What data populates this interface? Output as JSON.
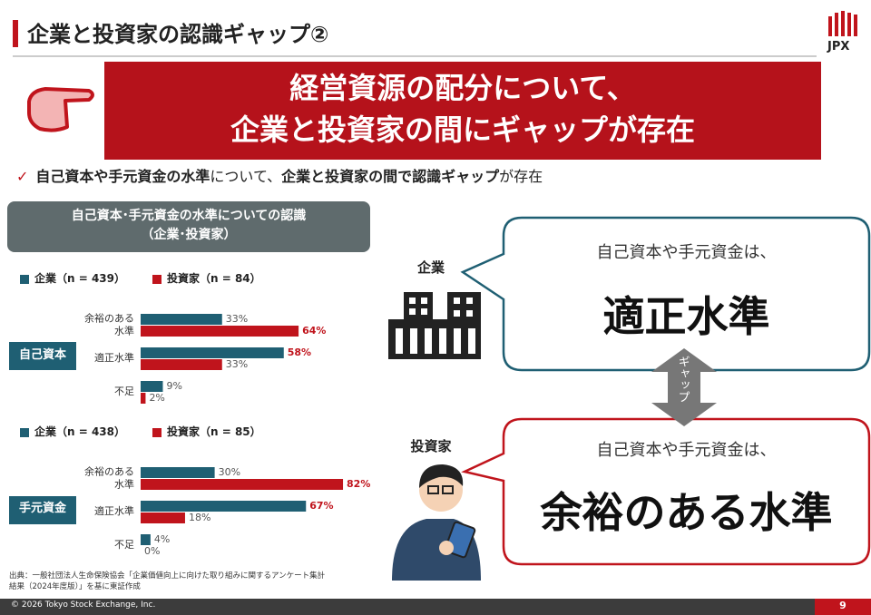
{
  "header": {
    "title": "企業と投資家の認識ギャップ②",
    "logo": "JPX"
  },
  "banner": {
    "lines": [
      "経営資源の配分について、",
      "企業と投資家の間にギャップが存在"
    ]
  },
  "bullet": {
    "mark": "✓",
    "segments": [
      {
        "text": "自己資本や手元資金の水準",
        "bold": true
      },
      {
        "text": "について、",
        "bold": false
      },
      {
        "text": "企業と投資家の間で認識ギャップ",
        "bold": true
      },
      {
        "text": "が存在",
        "bold": false
      }
    ]
  },
  "panel": {
    "lines": [
      "自己資本･手元資金の水準についての認識",
      "（企業･投資家）"
    ]
  },
  "chart_data": [
    {
      "type": "bar",
      "orientation": "horizontal",
      "group_label": "自己資本",
      "categories": [
        "余裕のある水準",
        "適正水準",
        "不足"
      ],
      "xlim": [
        0,
        100
      ],
      "highlight_color": "#c0141c",
      "series": [
        {
          "name": "企業（n = 439）",
          "color": "#1f5f73",
          "values": [
            33,
            58,
            9
          ],
          "value_labels": [
            "33%",
            "58%",
            "9%"
          ],
          "highlighted": [
            false,
            true,
            false
          ]
        },
        {
          "name": "投資家（n = 84）",
          "color": "#c0141c",
          "values": [
            64,
            33,
            2
          ],
          "value_labels": [
            "64%",
            "33%",
            "2%"
          ],
          "highlighted": [
            true,
            false,
            false
          ]
        }
      ]
    },
    {
      "type": "bar",
      "orientation": "horizontal",
      "group_label": "手元資金",
      "categories": [
        "余裕のある水準",
        "適正水準",
        "不足"
      ],
      "xlim": [
        0,
        100
      ],
      "highlight_color": "#c0141c",
      "series": [
        {
          "name": "企業（n = 438）",
          "color": "#1f5f73",
          "values": [
            30,
            67,
            4
          ],
          "value_labels": [
            "30%",
            "67%",
            "4%"
          ],
          "highlighted": [
            false,
            true,
            false
          ]
        },
        {
          "name": "投資家（n = 85）",
          "color": "#c0141c",
          "values": [
            82,
            18,
            0
          ],
          "value_labels": [
            "82%",
            "18%",
            "0%"
          ],
          "highlighted": [
            true,
            false,
            false
          ]
        }
      ]
    }
  ],
  "source": {
    "lines": [
      "出典：一般社団法人生命保険協会「企業価値向上に向けた取り組みに関するアンケート集計",
      "結果（2024年度版）」を基に東証作成"
    ]
  },
  "right": {
    "company": {
      "label": "企業",
      "lead": "自己資本や手元資金は、",
      "answer": "適正水準"
    },
    "gap": "ギャップ",
    "investor": {
      "label": "投資家",
      "lead": "自己資本や手元資金は、",
      "answer": "余裕のある水準"
    }
  },
  "footer": {
    "copyright": "© 2026 Tokyo Stock Exchange, Inc.",
    "page": 9
  }
}
